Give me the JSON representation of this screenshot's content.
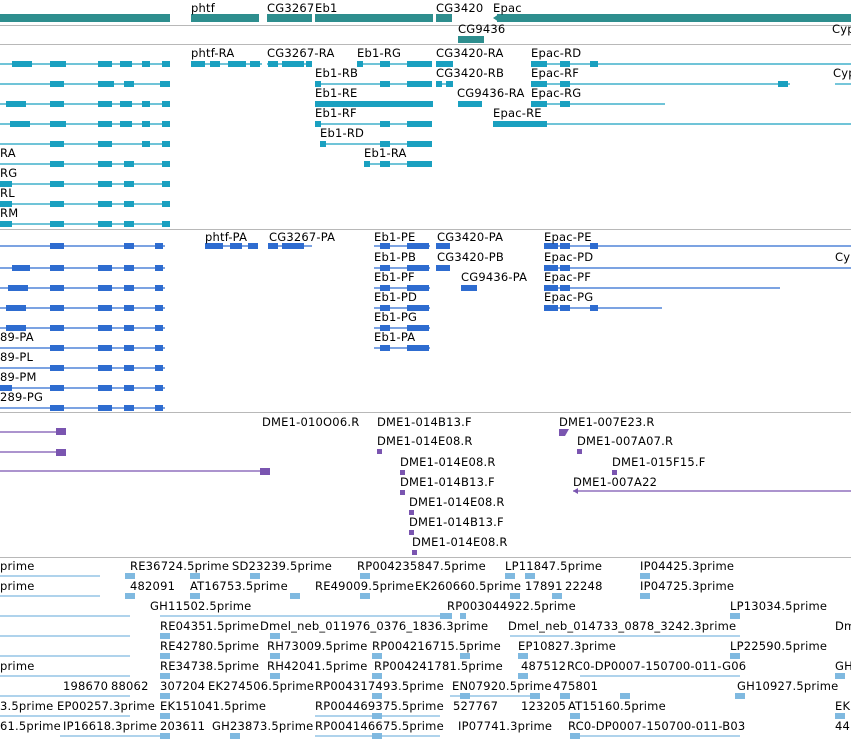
{
  "colors": {
    "gene": "#2e8e8e",
    "transcript": "#1aa0c0",
    "cds": "#2e6cd0",
    "probe": "#7a55b0",
    "est": "#7fb9e0",
    "separator": "#b8b8b8"
  },
  "tracks": {
    "genes": {
      "labels": [
        "phtf",
        "CG3267",
        "Eb1",
        "CG3420",
        "Epac",
        "CG9436",
        "Cyp"
      ]
    },
    "transcripts": {
      "labels": [
        "phtf-RA",
        "CG3267-RA",
        "Eb1-RG",
        "CG3420-RA",
        "Epac-RD",
        "Eb1-RB",
        "CG3420-RB",
        "Epac-RF",
        "Cyp",
        "Eb1-RE",
        "CG9436-RA",
        "Epac-RG",
        "Eb1-RF",
        "Epac-RE",
        "Eb1-RD",
        "Eb1-RA",
        "RA",
        "RG",
        "RL",
        "RM"
      ]
    },
    "proteins": {
      "labels": [
        "phtf-PA",
        "CG3267-PA",
        "Eb1-PE",
        "CG3420-PA",
        "Epac-PE",
        "Eb1-PB",
        "CG3420-PB",
        "Epac-PD",
        "Cyp",
        "Eb1-PF",
        "CG9436-PA",
        "Epac-PF",
        "Eb1-PD",
        "Epac-PG",
        "Eb1-PG",
        "Eb1-PA",
        "89-PA",
        "89-PL",
        "89-PM",
        "289-PG"
      ]
    },
    "probes": {
      "labels": [
        "DME1-010O06.R",
        "DME1-014B13.F",
        "DME1-007E23.R",
        "DME1-014E08.R",
        "DME1-007A07.R",
        "DME1-014E08.R",
        "DME1-015F15.F",
        "DME1-014B13.F",
        "DME1-007A22",
        "DME1-014E08.R",
        "DME1-014B13.F",
        "DME1-014E08.R"
      ]
    },
    "ests": {
      "labels": [
        "prime",
        "RE36724.5prime",
        "SD23239.5prime",
        "RP004235847.5prime",
        "LP11847.5prime",
        "IP04425.3prime",
        "prime",
        "482091",
        "AT16753.5prime",
        "RE49009.5prime",
        "EK260660.5prime",
        "17891",
        "22248",
        "IP04725.3prime",
        "GH11502.5prime",
        "RP003044922.5prime",
        "LP13034.5prime",
        "RE04351.5prime",
        "Dmel_neb_011976_0376_1836.3prime",
        "Dmel_neb_014733_0878_3242.3prime",
        "Dm",
        "RE42780.5prime",
        "RH73009.5prime",
        "RP004216715.5prime",
        "EP10827.3prime",
        "LP22590.5prime",
        "prime",
        "RE34738.5prime",
        "RH42041.5prime",
        "RP004241781.5prime",
        "487512",
        "RC0-DP0007-150700-011-G06",
        "GH",
        "198670",
        "88062",
        "307204",
        "EK274506.5prime",
        "RP004317493.5prime",
        "EN07920.5prime",
        "475801",
        "GH10927.5prime",
        "3.5prime",
        "EP00257.3prime",
        "EK151041.5prime",
        "RP004469375.5prime",
        "527767",
        "123205",
        "AT15160.5prime",
        "EK",
        "61.5prime",
        "IP16618.3prime",
        "203611",
        "GH23873.5prime",
        "RP004146675.5prime",
        "IP07741.3prime",
        "RC0-DP0007-150700-011-B03",
        "44"
      ]
    }
  }
}
